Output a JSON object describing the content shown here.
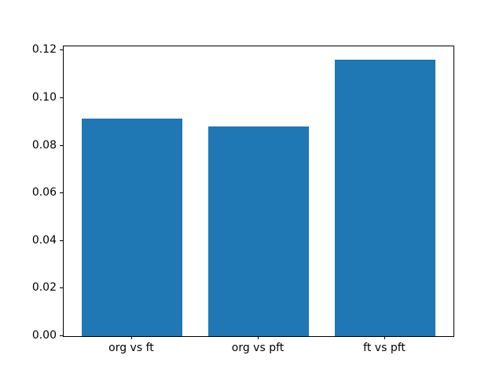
{
  "chart_data": {
    "type": "bar",
    "categories": [
      "org vs ft",
      "org vs pft",
      "ft vs pft"
    ],
    "values": [
      0.0915,
      0.088,
      0.1162
    ],
    "title": "",
    "xlabel": "",
    "ylabel": "",
    "ylim": [
      0,
      0.1218
    ],
    "xlim": [
      -0.54,
      2.54
    ],
    "yticks": [
      0.0,
      0.02,
      0.04,
      0.06,
      0.08,
      0.1,
      0.12
    ],
    "ytick_labels": [
      "0.00",
      "0.02",
      "0.04",
      "0.06",
      "0.08",
      "0.10",
      "0.12"
    ],
    "bar_width_data_units": 0.8,
    "bar_color": "#1f77b4",
    "axis_color": "#000000",
    "background_color": "#ffffff",
    "grid": false,
    "legend": null
  }
}
